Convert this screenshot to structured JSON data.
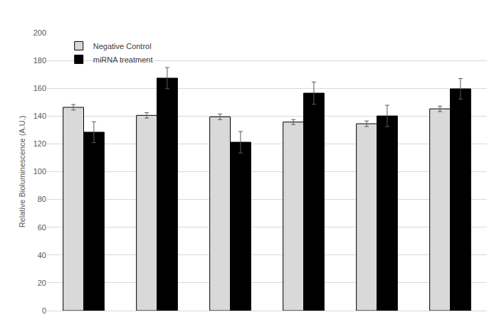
{
  "chart_data": {
    "type": "bar",
    "categories": [
      null,
      null,
      null,
      null,
      null,
      null
    ],
    "y_label": "Relative Bioluminescence (A.U.)",
    "series": [
      {
        "name": "Negative Control",
        "color": "#d9d9d9",
        "values": [
          146.3,
          140.5,
          139.5,
          135.7,
          134.5,
          145.2
        ],
        "errors": [
          2,
          2,
          2,
          1.8,
          2,
          2
        ]
      },
      {
        "name": "miRNA treatment",
        "color": "#000000",
        "values": [
          128.4,
          167.3,
          121.2,
          156.5,
          140.1,
          159.6
        ],
        "errors": [
          7.5,
          7.6,
          7.7,
          8,
          7.7,
          7.4
        ]
      }
    ],
    "ylim": [
      0,
      200
    ],
    "yticks": [
      0,
      20,
      40,
      60,
      80,
      100,
      120,
      140,
      160,
      180,
      200
    ],
    "grid": true,
    "legend": "top-left",
    "tick_labels": "y"
  }
}
